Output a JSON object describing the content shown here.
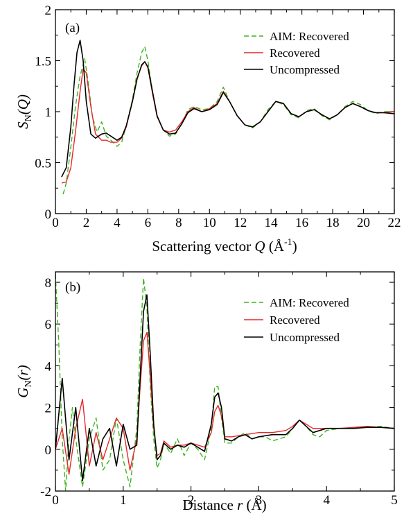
{
  "chart_data": [
    {
      "type": "line",
      "panel_label": "(a)",
      "ylabel_symbol": "S",
      "ylabel_sub": "N",
      "ylabel_arg": "(Q)",
      "xlabel_text": "Scattering vector ",
      "xlabel_var": "Q",
      "xlabel_unit": " (Å",
      "xlabel_unit_sup": "-1",
      "xlabel_close": ")",
      "xlim": [
        0,
        22
      ],
      "ylim": [
        0,
        2
      ],
      "xticks": [
        "0",
        "2",
        "4",
        "6",
        "8",
        "10",
        "12",
        "14",
        "16",
        "18",
        "20",
        "22"
      ],
      "yticks": [
        "0",
        "0.5",
        "1",
        "1.5",
        "2"
      ],
      "legend_position": "top-right",
      "colors": {
        "aim": "#3cb41e",
        "recovered": "#e8262a",
        "uncompressed": "#000000"
      },
      "series": [
        {
          "name": "AIM: Recovered",
          "style": "dashed",
          "x": [
            0.5,
            0.7,
            1.0,
            1.3,
            1.6,
            1.9,
            2.1,
            2.4,
            2.7,
            3.0,
            3.3,
            3.6,
            4.0,
            4.3,
            4.6,
            5.0,
            5.3,
            5.6,
            5.8,
            6.0,
            6.3,
            6.6,
            7.0,
            7.4,
            7.8,
            8.2,
            8.6,
            9.0,
            9.5,
            10.0,
            10.5,
            10.9,
            11.3,
            11.8,
            12.3,
            12.8,
            13.3,
            13.8,
            14.3,
            14.8,
            15.3,
            15.8,
            16.3,
            16.8,
            17.3,
            17.8,
            18.3,
            18.8,
            19.3,
            19.8,
            20.3,
            20.8,
            21.3,
            22.0
          ],
          "y": [
            0.19,
            0.3,
            0.65,
            1.05,
            1.35,
            1.52,
            1.32,
            0.95,
            0.8,
            0.9,
            0.76,
            0.72,
            0.66,
            0.7,
            0.86,
            1.12,
            1.38,
            1.58,
            1.64,
            1.5,
            1.2,
            0.95,
            0.82,
            0.76,
            0.78,
            0.88,
            1.02,
            1.05,
            1.02,
            1.03,
            1.1,
            1.24,
            1.1,
            0.96,
            0.87,
            0.84,
            0.9,
            1.02,
            1.1,
            1.07,
            0.97,
            0.94,
            1.01,
            1.03,
            0.96,
            0.92,
            0.97,
            1.05,
            1.1,
            1.07,
            1.01,
            0.98,
            1.0,
            1.0
          ]
        },
        {
          "name": "Recovered",
          "style": "solid",
          "x": [
            0.4,
            0.7,
            1.0,
            1.3,
            1.6,
            1.8,
            2.0,
            2.3,
            2.6,
            3.0,
            3.3,
            3.6,
            4.0,
            4.3,
            4.6,
            5.0,
            5.3,
            5.6,
            5.8,
            6.0,
            6.3,
            6.6,
            7.0,
            7.4,
            7.8,
            8.2,
            8.6,
            9.0,
            9.5,
            10.0,
            10.5,
            10.9,
            11.3,
            11.8,
            12.3,
            12.8,
            13.3,
            13.8,
            14.3,
            14.8,
            15.3,
            15.8,
            16.3,
            16.8,
            17.3,
            17.8,
            18.3,
            18.8,
            19.3,
            19.8,
            20.3,
            20.8,
            21.3,
            22.0
          ],
          "y": [
            0.3,
            0.31,
            0.45,
            0.8,
            1.2,
            1.42,
            1.38,
            1.05,
            0.78,
            0.72,
            0.72,
            0.7,
            0.7,
            0.74,
            0.85,
            1.1,
            1.33,
            1.45,
            1.49,
            1.43,
            1.18,
            0.95,
            0.82,
            0.8,
            0.82,
            0.9,
            1.0,
            1.04,
            1.0,
            1.03,
            1.08,
            1.2,
            1.1,
            0.96,
            0.87,
            0.85,
            0.9,
            1.0,
            1.1,
            1.08,
            0.98,
            0.95,
            1.0,
            1.02,
            0.97,
            0.93,
            0.97,
            1.04,
            1.08,
            1.05,
            1.01,
            0.99,
            0.99,
            1.0
          ]
        },
        {
          "name": "Uncompressed",
          "style": "solid",
          "x": [
            0.4,
            0.7,
            1.0,
            1.2,
            1.4,
            1.6,
            1.8,
            2.0,
            2.3,
            2.6,
            3.0,
            3.3,
            3.6,
            4.0,
            4.3,
            4.6,
            5.0,
            5.3,
            5.6,
            5.8,
            6.0,
            6.3,
            6.6,
            7.0,
            7.4,
            7.8,
            8.2,
            8.6,
            9.0,
            9.5,
            10.0,
            10.5,
            10.9,
            11.3,
            11.8,
            12.3,
            12.8,
            13.3,
            13.8,
            14.3,
            14.8,
            15.3,
            15.8,
            16.3,
            16.8,
            17.3,
            17.8,
            18.3,
            18.8,
            19.3,
            19.8,
            20.3,
            20.8,
            21.3,
            22.0
          ],
          "y": [
            0.36,
            0.45,
            0.85,
            1.25,
            1.58,
            1.7,
            1.5,
            1.1,
            0.78,
            0.74,
            0.78,
            0.79,
            0.76,
            0.72,
            0.75,
            0.86,
            1.1,
            1.32,
            1.46,
            1.49,
            1.44,
            1.2,
            0.96,
            0.82,
            0.78,
            0.79,
            0.88,
            0.99,
            1.03,
            1.0,
            1.02,
            1.07,
            1.19,
            1.1,
            0.96,
            0.87,
            0.85,
            0.9,
            1.0,
            1.1,
            1.08,
            0.98,
            0.95,
            1.0,
            1.02,
            0.97,
            0.93,
            0.97,
            1.04,
            1.08,
            1.05,
            1.01,
            0.99,
            0.99,
            0.98
          ]
        }
      ]
    },
    {
      "type": "line",
      "panel_label": "(b)",
      "ylabel_symbol": "G",
      "ylabel_sub": "N",
      "ylabel_arg": "(r)",
      "xlabel_text": "Distance ",
      "xlabel_var": "r",
      "xlabel_unit": " (Å)",
      "xlabel_unit_sup": "",
      "xlabel_close": "",
      "xlim": [
        0,
        5
      ],
      "ylim": [
        -2,
        8.5
      ],
      "xticks": [
        "0",
        "1",
        "2",
        "3",
        "4",
        "5"
      ],
      "yticks": [
        "-2",
        "0",
        "2",
        "4",
        "6",
        "8"
      ],
      "legend_position": "top-right",
      "colors": {
        "aim": "#3cb41e",
        "recovered": "#e8262a",
        "uncompressed": "#000000"
      },
      "series": [
        {
          "name": "AIM: Recovered",
          "style": "dashed",
          "x": [
            0.0,
            0.05,
            0.1,
            0.15,
            0.2,
            0.25,
            0.3,
            0.4,
            0.5,
            0.6,
            0.7,
            0.8,
            0.9,
            1.0,
            1.1,
            1.2,
            1.25,
            1.3,
            1.35,
            1.4,
            1.45,
            1.5,
            1.55,
            1.6,
            1.7,
            1.8,
            1.9,
            2.0,
            2.1,
            2.2,
            2.3,
            2.35,
            2.4,
            2.45,
            2.5,
            2.6,
            2.7,
            2.8,
            2.9,
            3.0,
            3.1,
            3.2,
            3.3,
            3.4,
            3.5,
            3.6,
            3.7,
            3.8,
            3.9,
            4.0,
            4.2,
            4.4,
            4.6,
            4.8,
            5.0
          ],
          "y": [
            8.4,
            5.0,
            0.5,
            -2.0,
            0.5,
            2.0,
            0.5,
            -1.8,
            0.5,
            1.5,
            -1.0,
            -0.5,
            1.5,
            -0.5,
            -1.8,
            1.0,
            5.0,
            8.2,
            6.8,
            3.0,
            0.5,
            -0.9,
            -0.5,
            0.3,
            -0.2,
            0.5,
            -0.3,
            0.3,
            0.0,
            -0.5,
            1.0,
            3.0,
            3.0,
            1.5,
            0.3,
            0.3,
            0.6,
            0.8,
            0.5,
            0.6,
            0.6,
            0.4,
            0.5,
            0.6,
            1.0,
            1.4,
            1.1,
            0.7,
            0.6,
            0.9,
            1.0,
            1.0,
            1.05,
            1.1,
            1.0
          ]
        },
        {
          "name": "Recovered",
          "style": "solid",
          "x": [
            0.0,
            0.1,
            0.2,
            0.3,
            0.4,
            0.5,
            0.6,
            0.7,
            0.8,
            0.9,
            1.0,
            1.1,
            1.2,
            1.25,
            1.3,
            1.35,
            1.4,
            1.45,
            1.5,
            1.55,
            1.6,
            1.7,
            1.8,
            1.9,
            2.0,
            2.1,
            2.2,
            2.3,
            2.35,
            2.4,
            2.45,
            2.5,
            2.6,
            2.8,
            3.0,
            3.2,
            3.4,
            3.5,
            3.6,
            3.7,
            3.8,
            4.0,
            4.2,
            4.4,
            4.6,
            4.8,
            5.0
          ],
          "y": [
            0.0,
            1.0,
            -1.2,
            1.0,
            2.4,
            -0.8,
            0.8,
            -0.5,
            0.5,
            1.5,
            1.0,
            -1.0,
            0.5,
            3.0,
            5.2,
            5.6,
            3.5,
            1.0,
            -0.3,
            -0.2,
            0.4,
            0.1,
            0.2,
            0.2,
            0.3,
            0.2,
            0.1,
            0.8,
            1.8,
            2.1,
            1.6,
            0.6,
            0.6,
            0.7,
            0.8,
            0.8,
            0.9,
            1.1,
            1.4,
            1.2,
            1.0,
            1.0,
            1.0,
            1.05,
            1.1,
            1.05,
            1.0
          ]
        },
        {
          "name": "Uncompressed",
          "style": "solid",
          "x": [
            0.0,
            0.1,
            0.2,
            0.3,
            0.4,
            0.5,
            0.6,
            0.7,
            0.8,
            0.9,
            1.0,
            1.1,
            1.2,
            1.25,
            1.3,
            1.35,
            1.4,
            1.45,
            1.5,
            1.55,
            1.6,
            1.7,
            1.8,
            1.9,
            2.0,
            2.1,
            2.2,
            2.3,
            2.35,
            2.4,
            2.45,
            2.5,
            2.6,
            2.7,
            2.8,
            2.9,
            3.0,
            3.2,
            3.4,
            3.5,
            3.6,
            3.7,
            3.8,
            4.0,
            4.2,
            4.4,
            4.6,
            4.8,
            5.0
          ],
          "y": [
            0.0,
            3.4,
            -0.5,
            2.0,
            -1.5,
            1.0,
            -0.8,
            0.5,
            1.0,
            -0.8,
            1.2,
            0.0,
            0.2,
            3.5,
            6.6,
            7.4,
            4.5,
            1.2,
            -0.5,
            -0.3,
            0.3,
            0.0,
            0.2,
            0.1,
            0.3,
            0.1,
            -0.1,
            1.2,
            2.5,
            2.7,
            2.0,
            0.5,
            0.4,
            0.6,
            0.7,
            0.5,
            0.6,
            0.7,
            0.7,
            1.0,
            1.4,
            1.1,
            0.8,
            1.0,
            1.0,
            1.0,
            1.05,
            1.05,
            1.0
          ]
        }
      ]
    }
  ]
}
